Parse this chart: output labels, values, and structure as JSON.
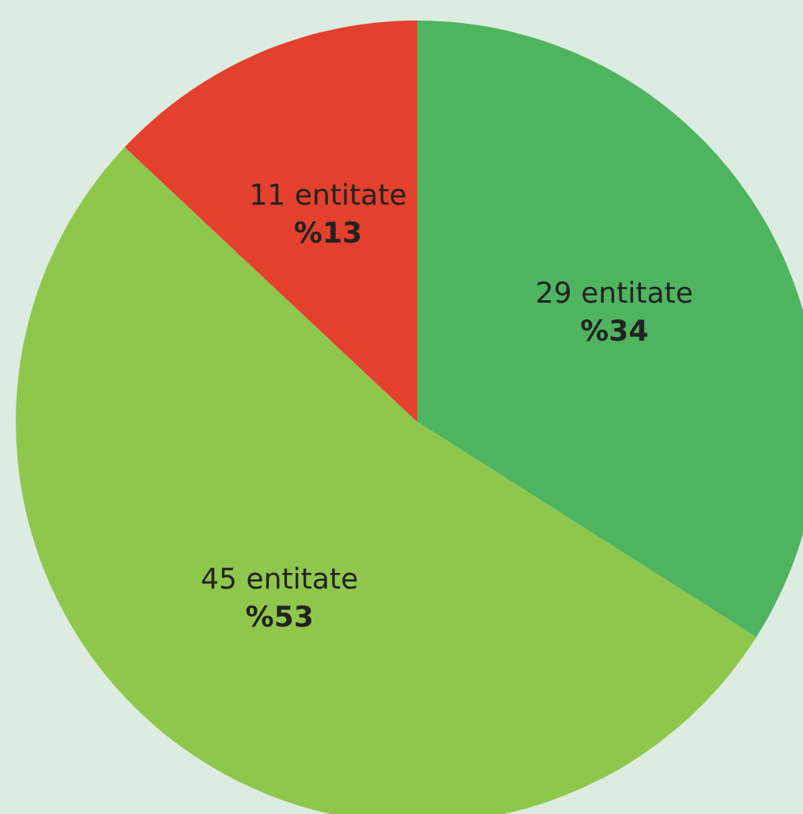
{
  "chart_data": {
    "type": "pie",
    "categories": [
      "29 entitate",
      "45 entitate",
      "11 entitate"
    ],
    "values": [
      34,
      53,
      13
    ],
    "value_labels": [
      "%34",
      "%53",
      "%13"
    ],
    "colors": [
      "#4fb460",
      "#8fc74c",
      "#e3402e"
    ],
    "legend": false
  }
}
